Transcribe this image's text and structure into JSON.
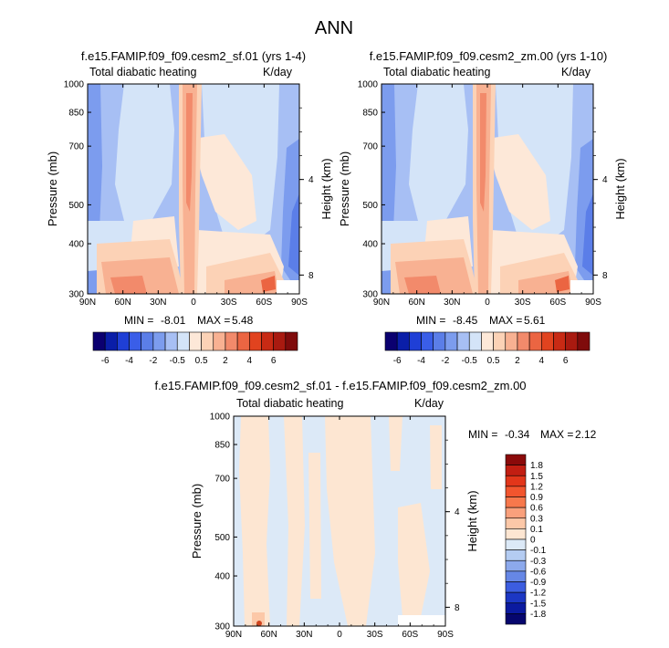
{
  "page": {
    "title": "ANN"
  },
  "colors": {
    "diff_positive": "#fde2cf",
    "diff_negative": "#dce9f7",
    "diff_hot": "#d0451f"
  },
  "chart_data": [
    {
      "type": "heatmap",
      "id": "panel1",
      "title": "f.e15.FAMIP.f09_f09.cesm2_sf.01 (yrs 1-4)",
      "left_label": "Total diabatic heating",
      "units": "K/day",
      "ylabel": "Pressure (mb)",
      "y2label": "Height (km)",
      "x_ticks": [
        "90N",
        "60N",
        "30N",
        "0",
        "30S",
        "60S",
        "90S"
      ],
      "y_ticks": [
        "300",
        "400",
        "500",
        "700",
        "850",
        "1000"
      ],
      "y2_ticks": [
        "8",
        "4"
      ],
      "ylim": [
        1000,
        300
      ],
      "min_label": "MIN =",
      "min_value": "-8.01",
      "max_label": "MAX =",
      "max_value": "5.48",
      "levels": [
        -7,
        -6,
        -5,
        -4,
        -3,
        -2,
        -1,
        -0.5,
        0,
        0.5,
        1,
        2,
        3,
        4,
        5,
        6,
        7
      ],
      "colorbar_labels": [
        "-6",
        "-4",
        "-2",
        "-0.5",
        "0.5",
        "2",
        "4",
        "6"
      ],
      "colors": [
        "#0b0070",
        "#0a1ea8",
        "#1f3fd6",
        "#3a5ee8",
        "#5b7ee8",
        "#7c9cee",
        "#a7bff4",
        "#d4e4f8",
        "#fde8d8",
        "#fcd2b6",
        "#f8b192",
        "#f28a6b",
        "#eb6542",
        "#e1431f",
        "#c82a14",
        "#a91a10",
        "#7f0b0b"
      ]
    },
    {
      "type": "heatmap",
      "id": "panel2",
      "title": "f.e15.FAMIP.f09_f09.cesm2_zm.00 (yrs 1-10)",
      "left_label": "Total diabatic heating",
      "units": "K/day",
      "ylabel": "Pressure (mb)",
      "y2label": "Height (km)",
      "x_ticks": [
        "90N",
        "60N",
        "30N",
        "0",
        "30S",
        "60S",
        "90S"
      ],
      "y_ticks": [
        "300",
        "400",
        "500",
        "700",
        "850",
        "1000"
      ],
      "y2_ticks": [
        "8",
        "4"
      ],
      "ylim": [
        1000,
        300
      ],
      "min_label": "MIN =",
      "min_value": "-8.45",
      "max_label": "MAX =",
      "max_value": "5.61",
      "levels": [
        -7,
        -6,
        -5,
        -4,
        -3,
        -2,
        -1,
        -0.5,
        0,
        0.5,
        1,
        2,
        3,
        4,
        5,
        6,
        7
      ],
      "colorbar_labels": [
        "-6",
        "-4",
        "-2",
        "-0.5",
        "0.5",
        "2",
        "4",
        "6"
      ],
      "colors": [
        "#0b0070",
        "#0a1ea8",
        "#1f3fd6",
        "#3a5ee8",
        "#5b7ee8",
        "#7c9cee",
        "#a7bff4",
        "#d4e4f8",
        "#fde8d8",
        "#fcd2b6",
        "#f8b192",
        "#f28a6b",
        "#eb6542",
        "#e1431f",
        "#c82a14",
        "#a91a10",
        "#7f0b0b"
      ]
    },
    {
      "type": "heatmap",
      "id": "panel3",
      "title": "f.e15.FAMIP.f09_f09.cesm2_sf.01 - f.e15.FAMIP.f09_f09.cesm2_zm.00",
      "left_label": "Total diabatic heating",
      "units": "K/day",
      "ylabel": "Pressure (mb)",
      "y2label": "Height (km)",
      "x_ticks": [
        "90N",
        "60N",
        "30N",
        "0",
        "30S",
        "60S",
        "90S"
      ],
      "y_ticks": [
        "300",
        "400",
        "500",
        "700",
        "850",
        "1000"
      ],
      "y2_ticks": [
        "8",
        "4"
      ],
      "ylim": [
        1000,
        300
      ],
      "min_label": "MIN =",
      "min_value": "-0.34",
      "max_label": "MAX =",
      "max_value": "2.12",
      "levels": [
        1.8,
        1.5,
        1.2,
        0.9,
        0.6,
        0.3,
        0.1,
        0,
        -0.1,
        -0.3,
        -0.6,
        -0.9,
        -1.2,
        -1.5,
        -1.8
      ],
      "colorbar_labels": [
        "1.8",
        "1.5",
        "1.2",
        "0.9",
        "0.6",
        "0.3",
        "0.1",
        "0",
        "-0.1",
        "-0.3",
        "-0.6",
        "-0.9",
        "-1.2",
        "-1.5",
        "-1.8"
      ],
      "colors": [
        "#8b0a0a",
        "#c21e12",
        "#e2361a",
        "#f2552e",
        "#f7784c",
        "#f9a07c",
        "#fcc8a8",
        "#fde6d2",
        "#dce9f7",
        "#b4ccf2",
        "#8ca9ec",
        "#6687e6",
        "#3c5de0",
        "#1c37c4",
        "#0b1aa0",
        "#06066e"
      ]
    }
  ]
}
